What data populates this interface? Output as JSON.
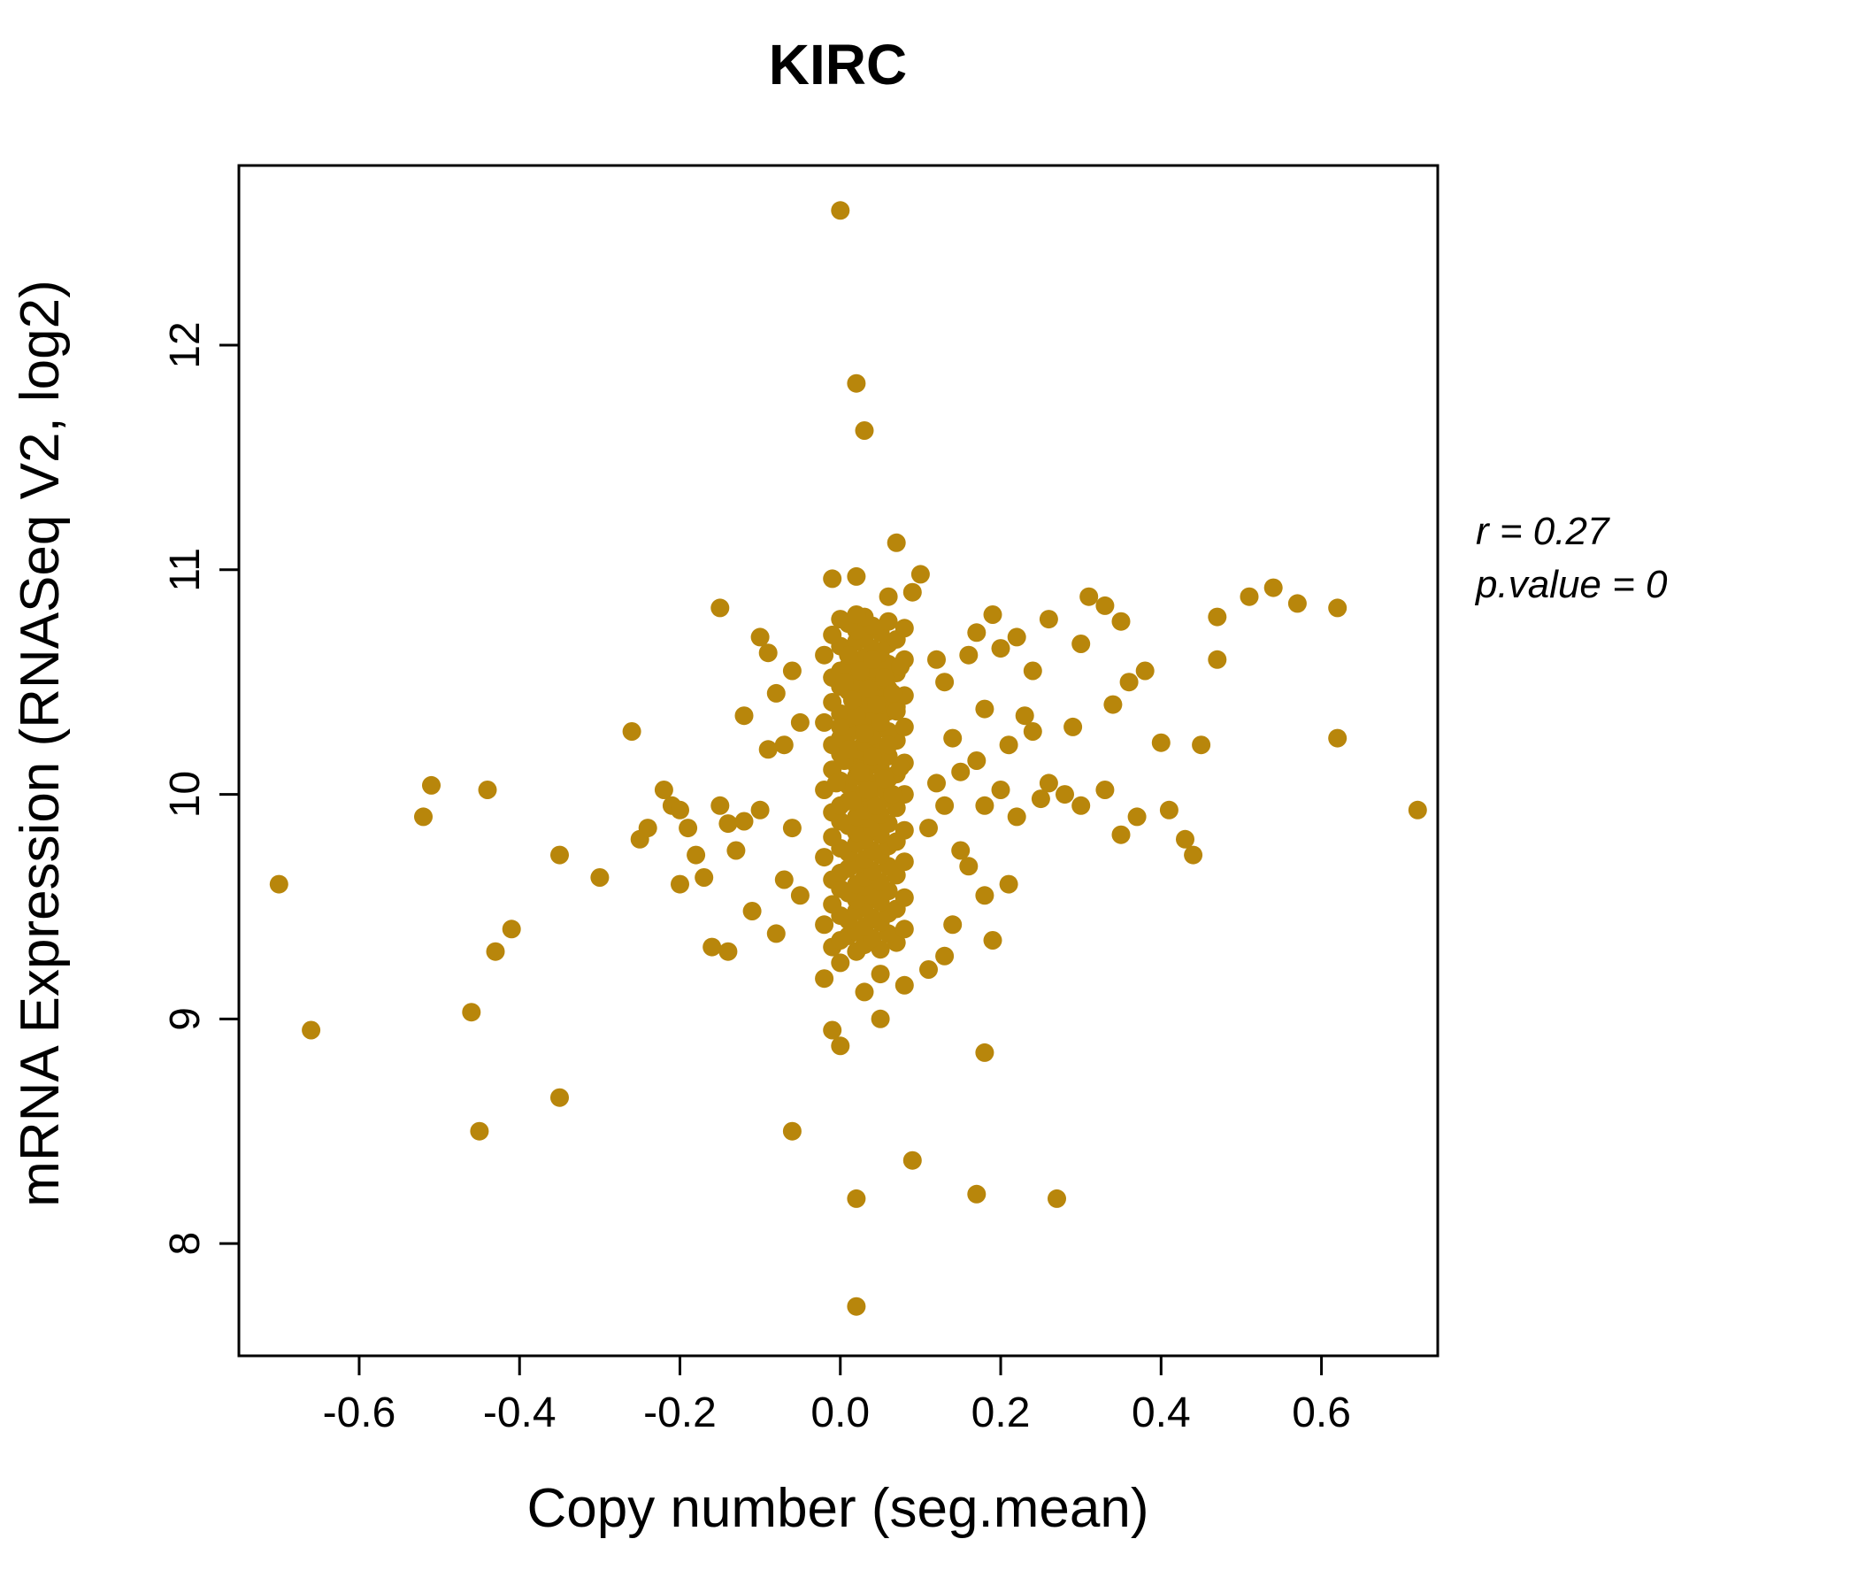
{
  "chart_data": {
    "type": "scatter",
    "title": "KIRC",
    "xlabel": "Copy number (seg.mean)",
    "ylabel": "mRNA Expression (RNASeq V2, log2)",
    "xlim": [
      -0.75,
      0.745
    ],
    "ylim": [
      7.5,
      12.8
    ],
    "xticks": [
      -0.6,
      -0.4,
      -0.2,
      0.0,
      0.2,
      0.4,
      0.6
    ],
    "xtick_labels": [
      "-0.6",
      "-0.4",
      "-0.2",
      "0.0",
      "0.2",
      "0.4",
      "0.6"
    ],
    "yticks": [
      8,
      9,
      10,
      11,
      12
    ],
    "ytick_labels": [
      "8",
      "9",
      "10",
      "11",
      "12"
    ],
    "grid": false,
    "legend": "none",
    "point_color": "#B8860B",
    "title_color": "#B8860B",
    "annotation": [
      "r = 0.27",
      "p.value = 0"
    ],
    "points": [
      [
        0.0,
        12.6
      ],
      [
        0.02,
        11.83
      ],
      [
        0.03,
        11.62
      ],
      [
        0.07,
        11.12
      ],
      [
        0.1,
        10.98
      ],
      [
        0.02,
        10.97
      ],
      [
        -0.01,
        10.96
      ],
      [
        0.09,
        10.9
      ],
      [
        0.06,
        10.88
      ],
      [
        0.02,
        7.72
      ],
      [
        0.02,
        8.2
      ],
      [
        0.17,
        8.22
      ],
      [
        0.27,
        8.2
      ],
      [
        0.09,
        8.37
      ],
      [
        -0.06,
        8.5
      ],
      [
        -0.45,
        8.5
      ],
      [
        -0.35,
        8.65
      ],
      [
        -0.66,
        8.95
      ],
      [
        -0.46,
        9.03
      ],
      [
        -0.7,
        9.6
      ],
      [
        -0.52,
        9.9
      ],
      [
        -0.51,
        10.04
      ],
      [
        -0.44,
        10.02
      ],
      [
        -0.41,
        9.4
      ],
      [
        -0.43,
        9.3
      ],
      [
        -0.35,
        9.73
      ],
      [
        -0.3,
        9.63
      ],
      [
        -0.26,
        10.28
      ],
      [
        0.72,
        9.93
      ],
      [
        0.62,
        10.83
      ],
      [
        0.57,
        10.85
      ],
      [
        0.54,
        10.92
      ],
      [
        0.51,
        10.88
      ],
      [
        0.47,
        10.79
      ],
      [
        0.45,
        10.22
      ],
      [
        0.43,
        9.8
      ],
      [
        0.4,
        10.23
      ],
      [
        0.38,
        10.55
      ],
      [
        0.36,
        10.5
      ],
      [
        0.35,
        10.77
      ],
      [
        0.33,
        10.84
      ],
      [
        0.31,
        10.88
      ],
      [
        0.3,
        10.67
      ],
      [
        0.62,
        10.25
      ],
      [
        0.47,
        10.6
      ],
      [
        0.44,
        9.73
      ],
      [
        0.41,
        9.93
      ],
      [
        0.37,
        9.9
      ],
      [
        0.35,
        9.82
      ],
      [
        0.33,
        10.02
      ],
      [
        0.3,
        9.95
      ],
      [
        0.29,
        10.3
      ],
      [
        0.34,
        10.4
      ],
      [
        0.18,
        8.85
      ],
      [
        0.0,
        8.88
      ],
      [
        -0.01,
        8.95
      ],
      [
        0.05,
        9.0
      ],
      [
        0.03,
        9.12
      ],
      [
        -0.02,
        9.18
      ],
      [
        0.08,
        9.15
      ],
      [
        0.05,
        9.2
      ],
      [
        0.0,
        9.25
      ],
      [
        -0.25,
        9.8
      ],
      [
        -0.22,
        10.02
      ],
      [
        -0.21,
        9.95
      ],
      [
        -0.2,
        9.93
      ],
      [
        -0.19,
        9.85
      ],
      [
        -0.18,
        9.73
      ],
      [
        -0.17,
        9.63
      ],
      [
        -0.16,
        9.32
      ],
      [
        -0.15,
        10.83
      ],
      [
        -0.15,
        9.95
      ],
      [
        -0.14,
        9.87
      ],
      [
        -0.13,
        9.75
      ],
      [
        -0.12,
        9.88
      ],
      [
        -0.11,
        9.48
      ],
      [
        -0.1,
        9.93
      ],
      [
        -0.1,
        10.7
      ],
      [
        -0.09,
        10.63
      ],
      [
        -0.08,
        10.45
      ],
      [
        -0.08,
        9.38
      ],
      [
        -0.07,
        10.22
      ],
      [
        -0.07,
        9.62
      ],
      [
        -0.06,
        10.55
      ],
      [
        -0.06,
        9.85
      ],
      [
        -0.05,
        10.32
      ],
      [
        -0.24,
        9.85
      ],
      [
        -0.2,
        9.6
      ],
      [
        -0.14,
        9.3
      ],
      [
        -0.12,
        10.35
      ],
      [
        -0.09,
        10.2
      ],
      [
        -0.05,
        9.55
      ],
      [
        0.12,
        10.6
      ],
      [
        0.13,
        10.5
      ],
      [
        0.14,
        10.25
      ],
      [
        0.15,
        10.1
      ],
      [
        0.15,
        9.75
      ],
      [
        0.16,
        10.62
      ],
      [
        0.17,
        10.72
      ],
      [
        0.18,
        10.38
      ],
      [
        0.18,
        9.95
      ],
      [
        0.19,
        10.8
      ],
      [
        0.2,
        10.65
      ],
      [
        0.2,
        10.02
      ],
      [
        0.21,
        10.22
      ],
      [
        0.22,
        9.9
      ],
      [
        0.23,
        10.35
      ],
      [
        0.24,
        10.28
      ],
      [
        0.25,
        9.98
      ],
      [
        0.26,
        10.05
      ],
      [
        0.28,
        10.0
      ],
      [
        0.18,
        9.55
      ],
      [
        0.14,
        9.42
      ],
      [
        0.13,
        9.28
      ],
      [
        0.11,
        9.22
      ],
      [
        0.16,
        9.68
      ],
      [
        0.19,
        9.35
      ],
      [
        0.21,
        9.6
      ],
      [
        0.22,
        10.7
      ],
      [
        0.24,
        10.55
      ],
      [
        0.26,
        10.78
      ],
      [
        0.17,
        10.15
      ],
      [
        0.13,
        9.95
      ],
      [
        0.12,
        10.05
      ],
      [
        0.11,
        9.85
      ],
      [
        0.02,
        9.3
      ],
      [
        0.05,
        9.31
      ],
      [
        -0.01,
        9.32
      ],
      [
        0.03,
        9.33
      ],
      [
        0.07,
        9.34
      ],
      [
        0.0,
        9.35
      ],
      [
        0.04,
        9.36
      ],
      [
        0.01,
        9.37
      ],
      [
        0.06,
        9.38
      ],
      [
        0.02,
        9.39
      ],
      [
        0.08,
        9.4
      ],
      [
        0.03,
        9.41
      ],
      [
        -0.02,
        9.42
      ],
      [
        0.05,
        9.43
      ],
      [
        0.01,
        9.44
      ],
      [
        0.04,
        9.45
      ],
      [
        0.0,
        9.46
      ],
      [
        0.06,
        9.47
      ],
      [
        0.02,
        9.48
      ],
      [
        0.07,
        9.49
      ],
      [
        0.03,
        9.5
      ],
      [
        -0.01,
        9.51
      ],
      [
        0.05,
        9.52
      ],
      [
        0.02,
        9.53
      ],
      [
        0.08,
        9.54
      ],
      [
        0.04,
        9.55
      ],
      [
        0.01,
        9.56
      ],
      [
        0.06,
        9.57
      ],
      [
        0.0,
        9.58
      ],
      [
        0.03,
        9.59
      ],
      [
        0.02,
        9.6
      ],
      [
        0.05,
        9.61
      ],
      [
        -0.01,
        9.62
      ],
      [
        0.03,
        9.63
      ],
      [
        0.07,
        9.64
      ],
      [
        0.0,
        9.65
      ],
      [
        0.04,
        9.66
      ],
      [
        0.01,
        9.67
      ],
      [
        0.06,
        9.68
      ],
      [
        0.02,
        9.69
      ],
      [
        0.08,
        9.7
      ],
      [
        0.03,
        9.71
      ],
      [
        -0.02,
        9.72
      ],
      [
        0.05,
        9.73
      ],
      [
        0.01,
        9.74
      ],
      [
        0.04,
        9.75
      ],
      [
        0.0,
        9.76
      ],
      [
        0.06,
        9.77
      ],
      [
        0.02,
        9.78
      ],
      [
        0.07,
        9.79
      ],
      [
        0.03,
        9.8
      ],
      [
        -0.01,
        9.81
      ],
      [
        0.05,
        9.82
      ],
      [
        0.02,
        9.83
      ],
      [
        0.08,
        9.84
      ],
      [
        0.04,
        9.85
      ],
      [
        0.01,
        9.86
      ],
      [
        0.06,
        9.87
      ],
      [
        0.0,
        9.88
      ],
      [
        0.03,
        9.89
      ],
      [
        0.02,
        9.9
      ],
      [
        0.05,
        9.91
      ],
      [
        -0.01,
        9.92
      ],
      [
        0.03,
        9.93
      ],
      [
        0.07,
        9.94
      ],
      [
        0.0,
        9.95
      ],
      [
        0.04,
        9.96
      ],
      [
        0.01,
        9.97
      ],
      [
        0.06,
        9.98
      ],
      [
        0.02,
        9.99
      ],
      [
        0.08,
        10.0
      ],
      [
        0.03,
        10.01
      ],
      [
        -0.02,
        10.02
      ],
      [
        0.05,
        10.03
      ],
      [
        0.01,
        10.04
      ],
      [
        0.04,
        10.05
      ],
      [
        0.0,
        10.06
      ],
      [
        0.06,
        10.07
      ],
      [
        0.02,
        10.08
      ],
      [
        0.07,
        10.09
      ],
      [
        0.03,
        10.1
      ],
      [
        -0.01,
        10.11
      ],
      [
        0.05,
        10.12
      ],
      [
        0.02,
        10.13
      ],
      [
        0.08,
        10.14
      ],
      [
        0.04,
        10.15
      ],
      [
        0.01,
        10.16
      ],
      [
        0.06,
        10.17
      ],
      [
        0.0,
        10.18
      ],
      [
        0.03,
        10.19
      ],
      [
        0.02,
        10.2
      ],
      [
        0.05,
        10.21
      ],
      [
        -0.01,
        10.22
      ],
      [
        0.03,
        10.23
      ],
      [
        0.07,
        10.24
      ],
      [
        0.0,
        10.25
      ],
      [
        0.04,
        10.26
      ],
      [
        0.01,
        10.27
      ],
      [
        0.06,
        10.28
      ],
      [
        0.02,
        10.29
      ],
      [
        0.08,
        10.3
      ],
      [
        0.03,
        10.31
      ],
      [
        -0.02,
        10.32
      ],
      [
        0.05,
        10.33
      ],
      [
        0.01,
        10.34
      ],
      [
        0.04,
        10.35
      ],
      [
        0.0,
        10.36
      ],
      [
        0.06,
        10.37
      ],
      [
        0.02,
        10.38
      ],
      [
        0.07,
        10.39
      ],
      [
        0.03,
        10.4
      ],
      [
        -0.01,
        10.41
      ],
      [
        0.05,
        10.42
      ],
      [
        0.02,
        10.43
      ],
      [
        0.08,
        10.44
      ],
      [
        0.04,
        10.45
      ],
      [
        0.01,
        10.46
      ],
      [
        0.06,
        10.47
      ],
      [
        0.0,
        10.48
      ],
      [
        0.03,
        10.49
      ],
      [
        0.02,
        10.5
      ],
      [
        0.05,
        10.51
      ],
      [
        -0.01,
        10.52
      ],
      [
        0.03,
        10.53
      ],
      [
        0.07,
        10.54
      ],
      [
        0.0,
        10.55
      ],
      [
        0.04,
        10.56
      ],
      [
        0.01,
        10.57
      ],
      [
        0.06,
        10.58
      ],
      [
        0.02,
        10.59
      ],
      [
        0.08,
        10.6
      ],
      [
        0.03,
        10.61
      ],
      [
        -0.02,
        10.62
      ],
      [
        0.05,
        10.63
      ],
      [
        0.01,
        10.64
      ],
      [
        0.04,
        10.65
      ],
      [
        0.0,
        10.66
      ],
      [
        0.06,
        10.67
      ],
      [
        0.02,
        10.68
      ],
      [
        0.07,
        10.69
      ],
      [
        0.03,
        10.7
      ],
      [
        -0.01,
        10.71
      ],
      [
        0.05,
        10.72
      ],
      [
        0.02,
        10.73
      ],
      [
        0.08,
        10.74
      ],
      [
        0.04,
        10.75
      ],
      [
        0.01,
        10.76
      ],
      [
        0.06,
        10.77
      ],
      [
        0.0,
        10.78
      ],
      [
        0.03,
        10.79
      ],
      [
        0.02,
        10.8
      ],
      [
        0.045,
        9.95
      ],
      [
        0.015,
        9.97
      ],
      [
        0.065,
        10.0
      ],
      [
        0.035,
        10.02
      ],
      [
        -0.005,
        10.05
      ],
      [
        0.055,
        10.07
      ],
      [
        0.025,
        10.1
      ],
      [
        0.075,
        10.12
      ],
      [
        0.005,
        10.15
      ],
      [
        0.04,
        10.17
      ],
      [
        0.01,
        10.2
      ],
      [
        0.06,
        10.22
      ],
      [
        0.03,
        10.27
      ],
      [
        0.0,
        10.3
      ],
      [
        0.05,
        10.32
      ],
      [
        0.02,
        10.35
      ],
      [
        0.07,
        10.37
      ],
      [
        0.045,
        10.4
      ],
      [
        0.015,
        10.42
      ],
      [
        0.065,
        10.45
      ],
      [
        0.035,
        10.47
      ],
      [
        0.005,
        10.5
      ],
      [
        0.055,
        10.52
      ],
      [
        0.025,
        10.55
      ],
      [
        0.075,
        10.57
      ],
      [
        0.04,
        10.6
      ],
      [
        0.01,
        10.62
      ]
    ]
  }
}
